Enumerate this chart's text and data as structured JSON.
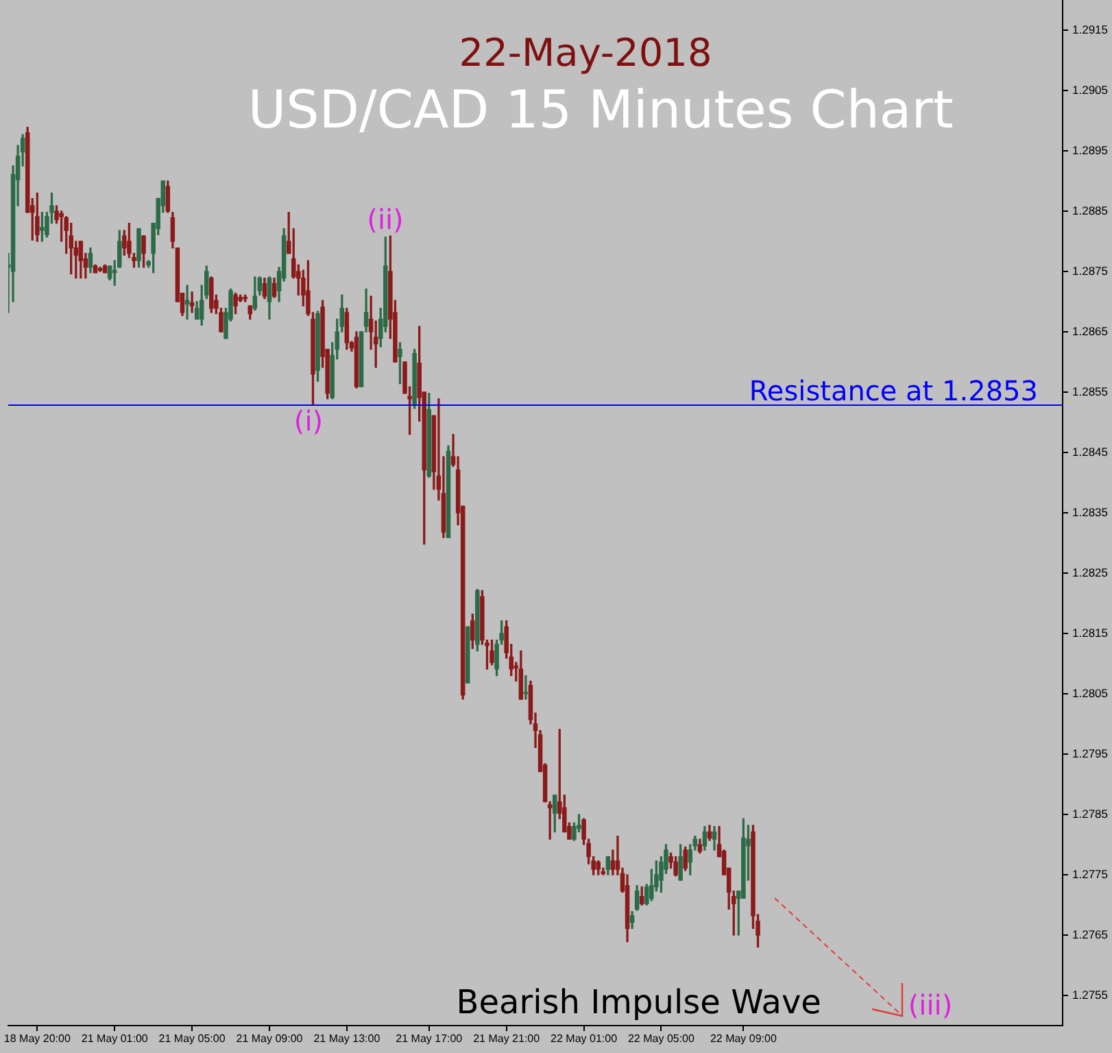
{
  "chart_data": {
    "type": "candlestick",
    "title": "USD/CAD 15 Minutes Chart",
    "subtitle": "22-May-2018",
    "annotations": [
      "Bearish Impulse Wave",
      "(i)",
      "(ii)",
      "(iii)"
    ],
    "categories": [
      null,
      null,
      null,
      null,
      null,
      null,
      "18 May 20:00",
      null,
      null,
      null,
      null,
      null,
      null,
      null,
      null,
      null,
      null,
      null,
      null,
      null,
      null,
      null,
      "21 May 01:00",
      null,
      null,
      null,
      null,
      null,
      null,
      null,
      null,
      null,
      null,
      null,
      null,
      null,
      null,
      null,
      "21 May 05:00",
      null,
      null,
      null,
      null,
      null,
      null,
      null,
      null,
      null,
      null,
      null,
      null,
      null,
      null,
      null,
      "21 May 09:00",
      null,
      null,
      null,
      null,
      null,
      null,
      null,
      null,
      null,
      null,
      null,
      null,
      null,
      null,
      null,
      "21 May 13:00",
      null,
      null,
      null,
      null,
      null,
      null,
      null,
      null,
      null,
      null,
      null,
      null,
      null,
      null,
      null,
      null,
      "21 May 17:00",
      null,
      null,
      null,
      null,
      null,
      null,
      null,
      null,
      null,
      null,
      null,
      null,
      null,
      null,
      null,
      "21 May 21:00",
      null,
      null,
      null,
      null,
      null,
      null,
      null,
      null,
      null,
      null,
      null,
      null,
      null,
      null,
      null,
      "22 May 01:00",
      null,
      null,
      null,
      null,
      null,
      null,
      null,
      null,
      null,
      null,
      null,
      null,
      null,
      null,
      null,
      "22 May 05:00",
      null,
      null,
      null,
      null,
      null,
      null,
      null,
      null,
      null,
      null,
      null,
      null,
      null,
      null,
      null,
      null,
      "22 May 09:00",
      null,
      null,
      null,
      null,
      null,
      null,
      null,
      null,
      null,
      null,
      null,
      null,
      null,
      null,
      null,
      null,
      null,
      null,
      null,
      null,
      null,
      null,
      null,
      null,
      null,
      null,
      null,
      null,
      null,
      null,
      null,
      null,
      null,
      null,
      null,
      null,
      null,
      null,
      null,
      null,
      null,
      null,
      null,
      null,
      null,
      null,
      null,
      null,
      null,
      null,
      null,
      null,
      null,
      null,
      null,
      null,
      null,
      null,
      null,
      null,
      null,
      null,
      null,
      null,
      null,
      null
    ],
    "ohlc": [
      [
        1.28757,
        1.2878,
        1.28682,
        1.28761
      ],
      [
        1.2875,
        1.28925,
        1.287,
        1.28911
      ],
      [
        1.28902,
        1.28959,
        1.28859,
        1.28941
      ],
      [
        1.28948,
        1.28977,
        1.28925,
        1.28971
      ],
      [
        1.2898,
        1.28989,
        1.28848,
        1.28848
      ],
      [
        1.28859,
        1.28871,
        1.28802,
        1.28848
      ],
      [
        1.28841,
        1.2888,
        1.288,
        1.28811
      ],
      [
        1.28818,
        1.28848,
        1.288,
        1.28823
      ],
      [
        1.28811,
        1.28848,
        1.28807,
        1.28841
      ],
      [
        1.28848,
        1.2888,
        1.2883,
        1.28859
      ],
      [
        1.2885,
        1.28859,
        1.2883,
        1.28836
      ],
      [
        1.28846,
        1.2885,
        1.288,
        1.28841
      ],
      [
        1.28839,
        1.28841,
        1.2878,
        1.28818
      ],
      [
        1.28809,
        1.2883,
        1.28746,
        1.28789
      ],
      [
        1.28789,
        1.288,
        1.28739,
        1.28777
      ],
      [
        1.288,
        1.288,
        1.28739,
        1.28768
      ],
      [
        1.28771,
        1.2878,
        1.28739,
        1.28757
      ],
      [
        1.28757,
        1.28789,
        1.28748,
        1.2878
      ],
      [
        1.28759,
        1.28761,
        1.28748,
        1.28748
      ],
      [
        1.28755,
        1.28757,
        1.2875,
        1.28752
      ],
      [
        1.28759,
        1.28761,
        1.28748,
        1.28748
      ],
      [
        1.28739,
        1.28759,
        1.28736,
        1.28759
      ],
      [
        1.28748,
        1.28768,
        1.28727,
        1.28752
      ],
      [
        1.28757,
        1.28818,
        1.28757,
        1.288
      ],
      [
        1.28809,
        1.28818,
        1.28777,
        1.28789
      ],
      [
        1.288,
        1.2883,
        1.28773,
        1.2878
      ],
      [
        1.28773,
        1.2878,
        1.28757,
        1.28768
      ],
      [
        1.28768,
        1.28821,
        1.28757,
        1.28821
      ],
      [
        1.28809,
        1.28809,
        1.28757,
        1.2878
      ],
      [
        1.28761,
        1.28768,
        1.28757,
        1.28766
      ],
      [
        1.2878,
        1.2883,
        1.28748,
        1.2883
      ],
      [
        1.28821,
        1.28871,
        1.28811,
        1.28871
      ],
      [
        1.28859,
        1.289,
        1.28848,
        1.289
      ],
      [
        1.28891,
        1.289,
        1.28848,
        1.2885
      ],
      [
        1.28839,
        1.28848,
        1.28789,
        1.288
      ],
      [
        1.28789,
        1.28789,
        1.287,
        1.287
      ],
      [
        1.28714,
        1.28714,
        1.28677,
        1.28682
      ],
      [
        1.28696,
        1.28727,
        1.28671,
        1.28702
      ],
      [
        1.28698,
        1.28716,
        1.28682,
        1.28693
      ],
      [
        1.28671,
        1.287,
        1.28671,
        1.28689
      ],
      [
        1.28671,
        1.28727,
        1.28661,
        1.28702
      ],
      [
        1.28711,
        1.28759,
        1.28705,
        1.2875
      ],
      [
        1.28739,
        1.28741,
        1.28682,
        1.28689
      ],
      [
        1.28702,
        1.28711,
        1.2868,
        1.28689
      ],
      [
        1.28682,
        1.28689,
        1.2865,
        1.2865
      ],
      [
        1.28639,
        1.28689,
        1.28639,
        1.28682
      ],
      [
        1.28671,
        1.28721,
        1.28668,
        1.28718
      ],
      [
        1.28711,
        1.28714,
        1.2868,
        1.28693
      ],
      [
        1.28707,
        1.28711,
        1.287,
        1.28702
      ],
      [
        1.28707,
        1.28711,
        1.287,
        1.28705
      ],
      [
        1.28693,
        1.28693,
        1.28671,
        1.2868
      ],
      [
        1.28689,
        1.28741,
        1.28686,
        1.28709
      ],
      [
        1.28718,
        1.28741,
        1.28711,
        1.28739
      ],
      [
        1.2873,
        1.28739,
        1.28705,
        1.28709
      ],
      [
        1.287,
        1.28741,
        1.28671,
        1.28739
      ],
      [
        1.2873,
        1.28739,
        1.28707,
        1.28709
      ],
      [
        1.28718,
        1.28757,
        1.287,
        1.2875
      ],
      [
        1.28739,
        1.28821,
        1.28734,
        1.28809
      ],
      [
        1.288,
        1.28848,
        1.2878,
        1.2878
      ],
      [
        1.28771,
        1.28821,
        1.28739,
        1.28741
      ],
      [
        1.2875,
        1.28761,
        1.28711,
        1.28739
      ],
      [
        1.28739,
        1.28752,
        1.28693,
        1.28711
      ],
      [
        1.28718,
        1.28768,
        1.28677,
        1.2868
      ],
      [
        1.28671,
        1.28682,
        1.2853,
        1.2858
      ],
      [
        1.28586,
        1.28684,
        1.28568,
        1.2868
      ],
      [
        1.28691,
        1.28702,
        1.28591,
        1.28609
      ],
      [
        1.28621,
        1.28621,
        1.28539,
        1.28548
      ],
      [
        1.28541,
        1.28632,
        1.28539,
        1.28611
      ],
      [
        1.28621,
        1.28671,
        1.28605,
        1.2865
      ],
      [
        1.28659,
        1.28711,
        1.2865,
        1.28689
      ],
      [
        1.28682,
        1.28689,
        1.28621,
        1.28632
      ],
      [
        1.28632,
        1.28634,
        1.28618,
        1.28623
      ],
      [
        1.28641,
        1.2865,
        1.28557,
        1.28559
      ],
      [
        1.28559,
        1.2865,
        1.28559,
        1.2865
      ],
      [
        1.28659,
        1.28721,
        1.2865,
        1.28682
      ],
      [
        1.28671,
        1.28709,
        1.28621,
        1.2865
      ],
      [
        1.28641,
        1.28668,
        1.28591,
        1.2863
      ],
      [
        1.28639,
        1.28689,
        1.28625,
        1.28671
      ],
      [
        1.28659,
        1.28807,
        1.2865,
        1.28759
      ],
      [
        1.2875,
        1.28809,
        1.28639,
        1.28671
      ],
      [
        1.28682,
        1.28702,
        1.286,
        1.286
      ],
      [
        1.28609,
        1.28632,
        1.28564,
        1.28621
      ],
      [
        1.286,
        1.286,
        1.28548,
        1.28548
      ],
      [
        1.28543,
        1.28559,
        1.2848,
        1.28539
      ],
      [
        1.2853,
        1.28621,
        1.28523,
        1.28614
      ],
      [
        1.28598,
        1.28659,
        1.28502,
        1.28541
      ],
      [
        1.2855,
        1.2855,
        1.28298,
        1.28421
      ],
      [
        1.28411,
        1.28548,
        1.28409,
        1.28521
      ],
      [
        1.28511,
        1.28511,
        1.28389,
        1.28418
      ],
      [
        1.28411,
        1.28539,
        1.28371,
        1.28389
      ],
      [
        1.28382,
        1.28443,
        1.28309,
        1.28318
      ],
      [
        1.28309,
        1.28461,
        1.28309,
        1.28452
      ],
      [
        1.28443,
        1.2848,
        1.28427,
        1.2843
      ],
      [
        1.28421,
        1.28443,
        1.2833,
        1.2835
      ],
      [
        1.28361,
        1.28361,
        1.28041,
        1.28048
      ],
      [
        1.28068,
        1.28161,
        1.28068,
        1.28161
      ],
      [
        1.28171,
        1.28182,
        1.28125,
        1.28139
      ],
      [
        1.28132,
        1.28223,
        1.28121,
        1.28221
      ],
      [
        1.28211,
        1.28221,
        1.28132,
        1.28139
      ],
      [
        1.28134,
        1.28139,
        1.28091,
        1.2813
      ],
      [
        1.28121,
        1.28139,
        1.28098,
        1.28102
      ],
      [
        1.28091,
        1.28139,
        1.2808,
        1.28132
      ],
      [
        1.28139,
        1.28171,
        1.28132,
        1.2815
      ],
      [
        1.28161,
        1.28171,
        1.28109,
        1.28118
      ],
      [
        1.28111,
        1.28132,
        1.2808,
        1.28091
      ],
      [
        1.28096,
        1.28102,
        1.28071,
        1.28093
      ],
      [
        1.28091,
        1.28121,
        1.28041,
        1.28041
      ],
      [
        1.2805,
        1.2808,
        1.28041,
        1.28052
      ],
      [
        1.28064,
        1.28071,
        1.28,
        1.28007
      ],
      [
        1.28,
        1.28018,
        1.27961,
        1.27989
      ],
      [
        1.27982,
        1.27989,
        1.27921,
        1.27921
      ],
      [
        1.27932,
        1.27934,
        1.27871,
        1.27871
      ],
      [
        1.27866,
        1.27871,
        1.27809,
        1.27861
      ],
      [
        1.27852,
        1.27882,
        1.27821,
        1.27882
      ],
      [
        1.27871,
        1.27991,
        1.27843,
        1.27852
      ],
      [
        1.27861,
        1.27882,
        1.27821,
        1.27821
      ],
      [
        1.2783,
        1.27836,
        1.27809,
        1.27809
      ],
      [
        1.27809,
        1.27836,
        1.27807,
        1.2783
      ],
      [
        1.27827,
        1.2785,
        1.27821,
        1.27832
      ],
      [
        1.27841,
        1.27843,
        1.278,
        1.27809
      ],
      [
        1.27802,
        1.27809,
        1.27768,
        1.2778
      ],
      [
        1.27773,
        1.2778,
        1.2775,
        1.27759
      ],
      [
        1.27771,
        1.27773,
        1.2775,
        1.27759
      ],
      [
        1.27755,
        1.27761,
        1.2775,
        1.27752
      ],
      [
        1.27759,
        1.2778,
        1.2775,
        1.2778
      ],
      [
        1.27773,
        1.27791,
        1.2775,
        1.27759
      ],
      [
        1.27773,
        1.27814,
        1.2775,
        1.27759
      ],
      [
        1.27752,
        1.27761,
        1.27721,
        1.27723
      ],
      [
        1.27732,
        1.2775,
        1.27639,
        1.27661
      ],
      [
        1.27671,
        1.27689,
        1.27661,
        1.27682
      ],
      [
        1.27693,
        1.27732,
        1.27691,
        1.27723
      ],
      [
        1.27714,
        1.2773,
        1.277,
        1.27702
      ],
      [
        1.27702,
        1.27734,
        1.277,
        1.2773
      ],
      [
        1.27711,
        1.27759,
        1.27707,
        1.27732
      ],
      [
        1.2773,
        1.27773,
        1.27723,
        1.2775
      ],
      [
        1.27741,
        1.2778,
        1.27721,
        1.27771
      ],
      [
        1.27759,
        1.278,
        1.27752,
        1.27791
      ],
      [
        1.2778,
        1.27786,
        1.27761,
        1.27771
      ],
      [
        1.27771,
        1.2778,
        1.27748,
        1.2775
      ],
      [
        1.27741,
        1.278,
        1.27741,
        1.2778
      ],
      [
        1.27791,
        1.27796,
        1.27757,
        1.27761
      ],
      [
        1.27771,
        1.278,
        1.2775,
        1.27791
      ],
      [
        1.27798,
        1.27814,
        1.27791,
        1.27809
      ],
      [
        1.278,
        1.27809,
        1.27786,
        1.27789
      ],
      [
        1.27798,
        1.2783,
        1.27791,
        1.27821
      ],
      [
        1.27821,
        1.27832,
        1.27807,
        1.27811
      ],
      [
        1.27809,
        1.2783,
        1.27791,
        1.27821
      ],
      [
        1.278,
        1.2783,
        1.2778,
        1.2778
      ],
      [
        1.27789,
        1.27791,
        1.2775,
        1.2775
      ],
      [
        1.27761,
        1.27761,
        1.27693,
        1.27721
      ],
      [
        1.27714,
        1.27723,
        1.2765,
        1.27702
      ],
      [
        1.27711,
        1.27723,
        1.2765,
        1.27723
      ],
      [
        1.27711,
        1.27843,
        1.27711,
        1.27811
      ],
      [
        1.27798,
        1.27832,
        1.27741,
        1.27809
      ],
      [
        1.27821,
        1.27832,
        1.27661,
        1.27682
      ],
      [
        1.27673,
        1.27684,
        1.2763,
        1.2765
      ],
      null,
      null,
      null,
      null,
      null,
      null,
      null,
      null,
      null,
      null,
      null,
      null,
      null,
      null,
      null,
      null,
      null,
      null,
      null,
      null,
      null,
      null,
      null,
      null,
      null,
      null,
      null,
      null,
      null,
      null,
      null,
      null,
      null,
      null,
      null,
      null,
      null,
      null,
      null,
      null,
      null,
      null,
      null,
      null,
      null,
      null,
      null,
      null,
      null,
      null,
      null,
      null,
      null,
      null,
      null,
      null,
      null,
      null,
      null,
      null,
      null,
      null,
      null
    ],
    "colors": [
      "#2d6b48",
      "#2d6b48",
      "#2d6b48",
      "#2d6b48",
      "#8b1a1a",
      "#8b1a1a",
      "#8b1a1a",
      "#2d6b48",
      "#2d6b48",
      "#2d6b48",
      "#8b1a1a",
      "#8b1a1a",
      "#8b1a1a",
      "#8b1a1a",
      "#8b1a1a",
      "#8b1a1a",
      "#8b1a1a",
      "#2d6b48",
      "#8b1a1a",
      "#8b1a1a",
      "#8b1a1a",
      "#2d6b48",
      "#2d6b48",
      "#2d6b48",
      "#8b1a1a",
      "#8b1a1a",
      "#8b1a1a",
      "#2d6b48",
      "#8b1a1a",
      "#2d6b48",
      "#2d6b48",
      "#2d6b48",
      "#2d6b48",
      "#8b1a1a",
      "#8b1a1a",
      "#8b1a1a",
      "#8b1a1a",
      "#2d6b48",
      "#8b1a1a",
      "#2d6b48",
      "#2d6b48",
      "#2d6b48",
      "#8b1a1a",
      "#8b1a1a",
      "#8b1a1a",
      "#2d6b48",
      "#2d6b48",
      "#8b1a1a",
      "#8b1a1a",
      "#8b1a1a",
      "#8b1a1a",
      "#2d6b48",
      "#2d6b48",
      "#8b1a1a",
      "#2d6b48",
      "#8b1a1a",
      "#2d6b48",
      "#2d6b48",
      "#8b1a1a",
      "#8b1a1a",
      "#8b1a1a",
      "#8b1a1a",
      "#8b1a1a",
      "#8b1a1a",
      "#2d6b48",
      "#8b1a1a",
      "#8b1a1a",
      "#2d6b48",
      "#2d6b48",
      "#2d6b48",
      "#8b1a1a",
      "#8b1a1a",
      "#8b1a1a",
      "#2d6b48",
      "#2d6b48",
      "#8b1a1a",
      "#8b1a1a",
      "#2d6b48",
      "#2d6b48",
      "#8b1a1a",
      "#8b1a1a",
      "#2d6b48",
      "#8b1a1a",
      "#8b1a1a",
      "#2d6b48",
      "#8b1a1a",
      "#8b1a1a",
      "#2d6b48",
      "#8b1a1a",
      "#8b1a1a",
      "#8b1a1a",
      "#2d6b48",
      "#8b1a1a",
      "#8b1a1a",
      "#8b1a1a",
      "#2d6b48",
      "#8b1a1a",
      "#2d6b48",
      "#8b1a1a",
      "#8b1a1a",
      "#8b1a1a",
      "#2d6b48",
      "#2d6b48",
      "#8b1a1a",
      "#8b1a1a",
      "#8b1a1a",
      "#8b1a1a",
      "#2d6b48",
      "#8b1a1a",
      "#8b1a1a",
      "#8b1a1a",
      "#8b1a1a",
      "#8b1a1a",
      "#2d6b48",
      "#8b1a1a",
      "#8b1a1a",
      "#8b1a1a",
      "#2d6b48",
      "#2d6b48",
      "#8b1a1a",
      "#8b1a1a",
      "#8b1a1a",
      "#8b1a1a",
      "#8b1a1a",
      "#2d6b48",
      "#8b1a1a",
      "#8b1a1a",
      "#8b1a1a",
      "#8b1a1a",
      "#2d6b48",
      "#2d6b48",
      "#8b1a1a",
      "#2d6b48",
      "#2d6b48",
      "#2d6b48",
      "#2d6b48",
      "#2d6b48",
      "#8b1a1a",
      "#8b1a1a",
      "#2d6b48",
      "#8b1a1a",
      "#2d6b48",
      "#2d6b48",
      "#8b1a1a",
      "#2d6b48",
      "#8b1a1a",
      "#2d6b48",
      "#8b1a1a",
      "#8b1a1a",
      "#8b1a1a",
      "#8b1a1a",
      "#2d6b48",
      "#2d6b48",
      "#2d6b48",
      "#8b1a1a",
      "#8b1a1a",
      null,
      null,
      null,
      null,
      null,
      null,
      null,
      null,
      null,
      null,
      null,
      null,
      null,
      null,
      null,
      null,
      null,
      null,
      null,
      null,
      null,
      null,
      null,
      null,
      null,
      null,
      null,
      null,
      null,
      null,
      null,
      null,
      null,
      null,
      null,
      null,
      null,
      null,
      null,
      null,
      null,
      null,
      null,
      null,
      null,
      null,
      null,
      null,
      null,
      null,
      null,
      null,
      null,
      null,
      null,
      null,
      null,
      null,
      null,
      null,
      null,
      null,
      null
    ],
    "ylim": [
      1.275,
      1.292
    ],
    "yticks": [
      1.2755,
      1.2765,
      1.2775,
      1.2785,
      1.2795,
      1.2805,
      1.2815,
      1.2825,
      1.2835,
      1.2845,
      1.2855,
      1.2865,
      1.2875,
      1.2885,
      1.2895,
      1.2905,
      1.2915
    ],
    "ref_lines": [
      {
        "axis": "y",
        "value": 1.2853,
        "label": "Resistance at 1.2853",
        "color": "#0000ff"
      }
    ]
  }
}
